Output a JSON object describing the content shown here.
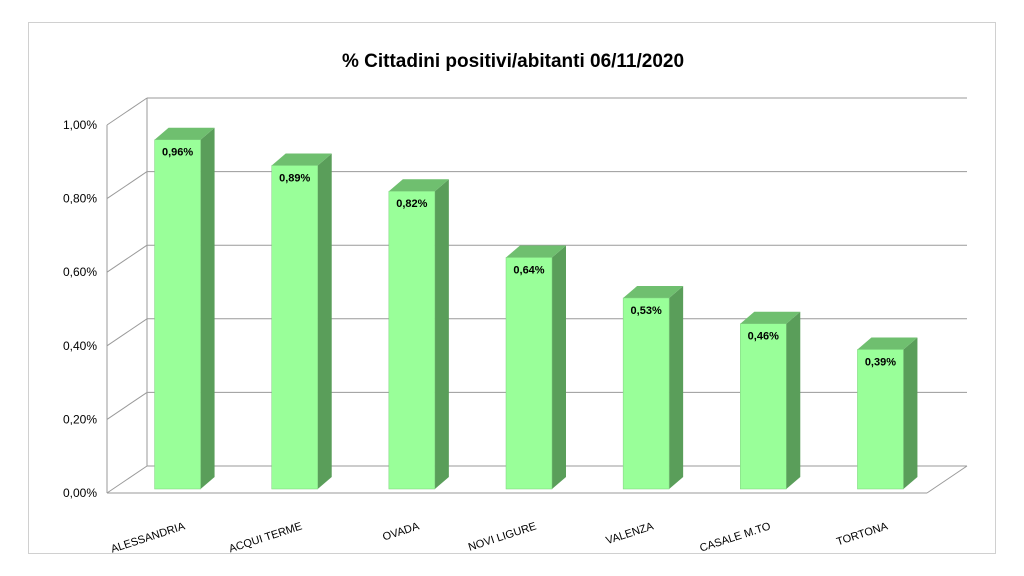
{
  "chart_data": {
    "type": "bar",
    "title": "% Cittadini positivi/abitanti 06/11/2020",
    "xlabel": "",
    "ylabel": "",
    "categories": [
      "ALESSANDRIA",
      "ACQUI TERME",
      "OVADA",
      "NOVI LIGURE",
      "VALENZA",
      "CASALE M.TO",
      "TORTONA"
    ],
    "values": [
      0.96,
      0.89,
      0.82,
      0.64,
      0.53,
      0.46,
      0.39
    ],
    "data_labels": [
      "0,96%",
      "0,89%",
      "0,82%",
      "0,64%",
      "0,53%",
      "0,46%",
      "0,39%"
    ],
    "ylim": [
      0,
      1.0
    ],
    "yticks": [
      0,
      0.2,
      0.4,
      0.6,
      0.8,
      1.0
    ],
    "ytick_labels": [
      "0,00%",
      "0,20%",
      "0,40%",
      "0,60%",
      "0,80%",
      "1,00%"
    ],
    "grid": true,
    "legend": "none",
    "style": "3d-column",
    "colors": {
      "bar_front": "#99ff99",
      "bar_side": "#5a9e5a",
      "bar_top": "#6fbf6f",
      "grid": "#9a9a9a"
    }
  }
}
